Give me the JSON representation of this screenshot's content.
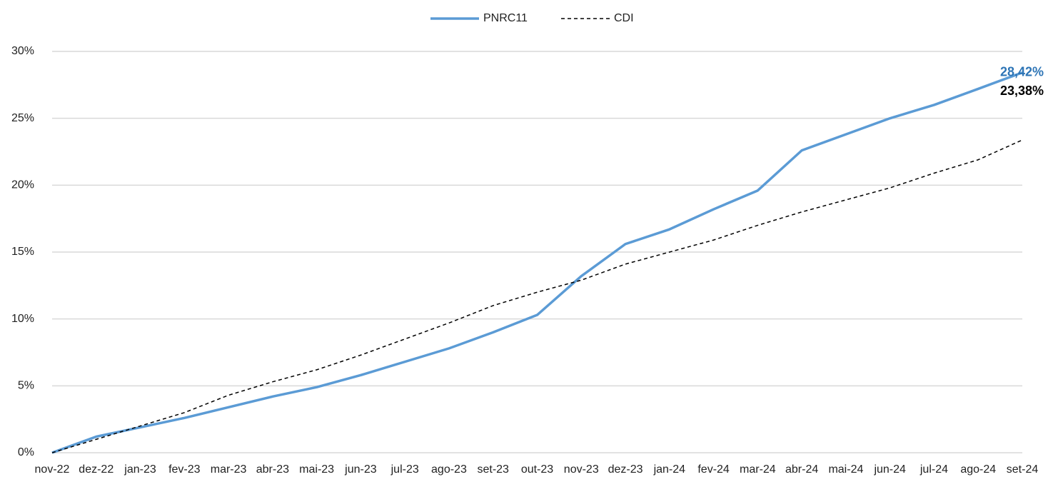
{
  "chart_data": {
    "type": "line",
    "categories": [
      "nov-22",
      "dez-22",
      "jan-23",
      "fev-23",
      "mar-23",
      "abr-23",
      "mai-23",
      "jun-23",
      "jul-23",
      "ago-23",
      "set-23",
      "out-23",
      "nov-23",
      "dez-23",
      "jan-24",
      "fev-24",
      "mar-24",
      "abr-24",
      "mai-24",
      "jun-24",
      "jul-24",
      "ago-24",
      "set-24"
    ],
    "series": [
      {
        "name": "PNRC11",
        "color": "#5b9bd5",
        "end_label_color": "#2e75b6",
        "dashed": false,
        "values": [
          0,
          1.2,
          1.9,
          2.6,
          3.4,
          4.2,
          4.9,
          5.8,
          6.8,
          7.8,
          9.0,
          10.3,
          13.2,
          15.6,
          16.7,
          18.2,
          19.6,
          22.6,
          23.8,
          25.0,
          26.0,
          27.2,
          28.42
        ],
        "end_label": "28,42%"
      },
      {
        "name": "CDI",
        "color": "#000000",
        "end_label_color": "#000000",
        "dashed": true,
        "values": [
          0,
          1.0,
          2.0,
          3.0,
          4.3,
          5.3,
          6.2,
          7.3,
          8.5,
          9.7,
          11.0,
          12.0,
          12.9,
          14.1,
          15.0,
          15.9,
          17.0,
          18.0,
          18.9,
          19.8,
          20.9,
          21.9,
          23.38
        ],
        "end_label": "23,38%"
      }
    ],
    "ylim": [
      0,
      30
    ],
    "yticks": [
      {
        "value": 0,
        "label": "0%"
      },
      {
        "value": 5,
        "label": "5%"
      },
      {
        "value": 10,
        "label": "10%"
      },
      {
        "value": 15,
        "label": "15%"
      },
      {
        "value": 20,
        "label": "20%"
      },
      {
        "value": 25,
        "label": "25%"
      },
      {
        "value": 30,
        "label": "30%"
      }
    ],
    "grid": true,
    "legend": "top"
  }
}
